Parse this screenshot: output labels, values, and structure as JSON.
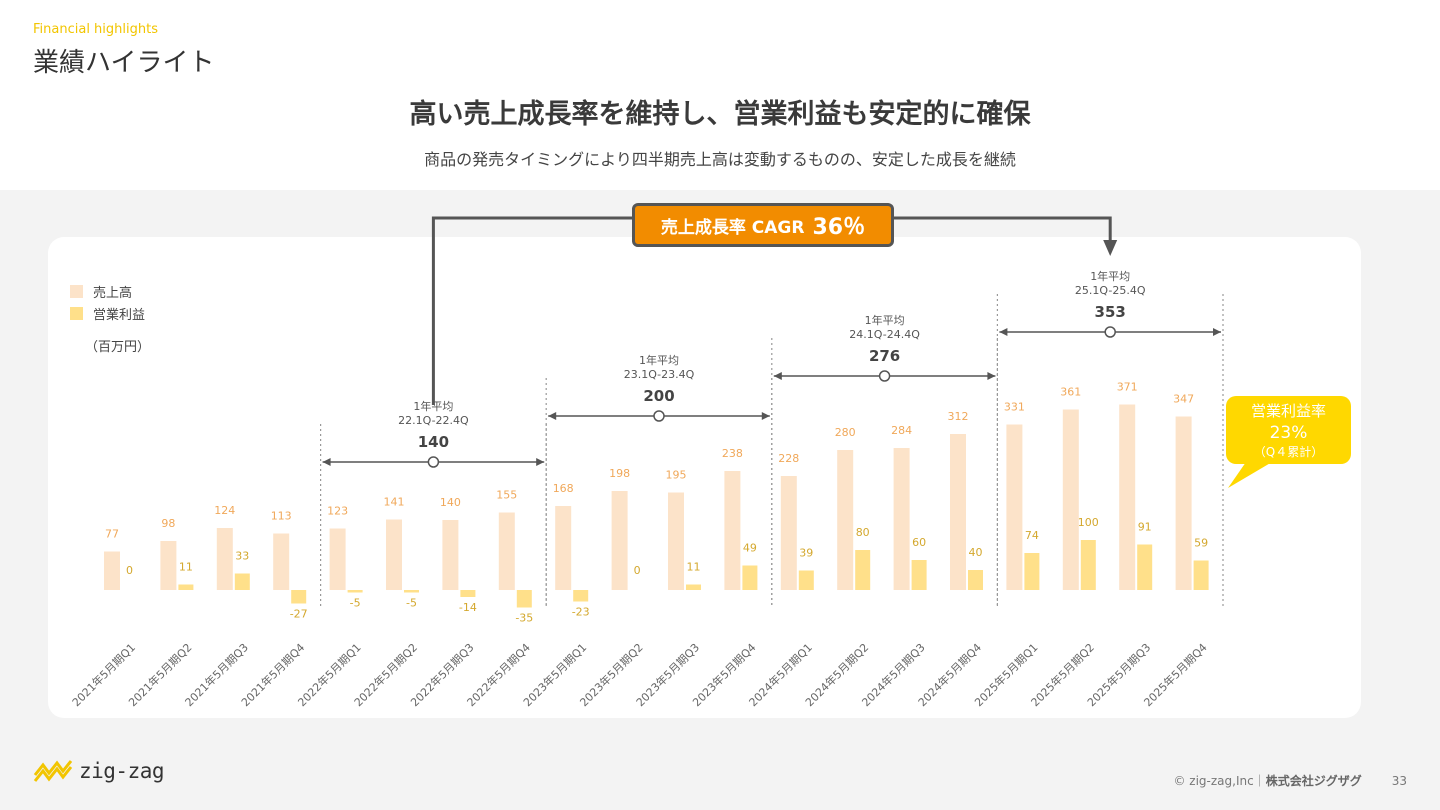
{
  "header": {
    "subtitle_en": "Financial highlights",
    "title": "業績ハイライト",
    "headline": "高い売上成長率を維持し、営業利益も安定的に確保",
    "subhead": "商品の発売タイミングにより四半期売上高は変動するものの、安定した成長を継続"
  },
  "legend": {
    "sales": "売上高",
    "op_profit": "営業利益",
    "unit": "（百万円）"
  },
  "cagr": {
    "label": "売上成長率 CAGR",
    "value": "36％"
  },
  "margin_callout": {
    "label": "営業利益率",
    "value": "23%",
    "note": "（Q４累計）"
  },
  "colors": {
    "sales": "#fce3c9",
    "op_profit": "#ffe08a",
    "sales_label": "#f0a85a",
    "profit_label": "#d4a82e",
    "accent": "#f28c00",
    "callout": "#ffd800"
  },
  "chart_data": {
    "type": "bar",
    "categories": [
      "2021年5月期Q1",
      "2021年5月期Q2",
      "2021年5月期Q3",
      "2021年5月期Q4",
      "2022年5月期Q1",
      "2022年5月期Q2",
      "2022年5月期Q3",
      "2022年5月期Q4",
      "2023年5月期Q1",
      "2023年5月期Q2",
      "2023年5月期Q3",
      "2023年5月期Q4",
      "2024年5月期Q1",
      "2024年5月期Q2",
      "2024年5月期Q3",
      "2024年5月期Q4",
      "2025年5月期Q1",
      "2025年5月期Q2",
      "2025年5月期Q3",
      "2025年5月期Q4"
    ],
    "series": [
      {
        "name": "売上高",
        "values": [
          77,
          98,
          124,
          113,
          123,
          141,
          140,
          155,
          168,
          198,
          195,
          238,
          228,
          280,
          284,
          312,
          331,
          361,
          371,
          347
        ]
      },
      {
        "name": "営業利益",
        "values": [
          0,
          11,
          33,
          -27,
          -5,
          -5,
          -14,
          -35,
          -23,
          0,
          11,
          49,
          39,
          80,
          60,
          40,
          74,
          100,
          91,
          59
        ]
      }
    ],
    "annual_averages": [
      {
        "label": "1年平均",
        "period": "22.1Q-22.4Q",
        "value": "140",
        "from": 4,
        "to": 7
      },
      {
        "label": "1年平均",
        "period": "23.1Q-23.4Q",
        "value": "200",
        "from": 8,
        "to": 11
      },
      {
        "label": "1年平均",
        "period": "24.1Q-24.4Q",
        "value": "276",
        "from": 12,
        "to": 15
      },
      {
        "label": "1年平均",
        "period": "25.1Q-25.4Q",
        "value": "353",
        "from": 16,
        "to": 19
      }
    ]
  },
  "logo": {
    "text": "zig-zag"
  },
  "footer": {
    "copyright": "© zig-zag,Inc｜",
    "company": "株式会社ジグザグ",
    "page": "33"
  }
}
